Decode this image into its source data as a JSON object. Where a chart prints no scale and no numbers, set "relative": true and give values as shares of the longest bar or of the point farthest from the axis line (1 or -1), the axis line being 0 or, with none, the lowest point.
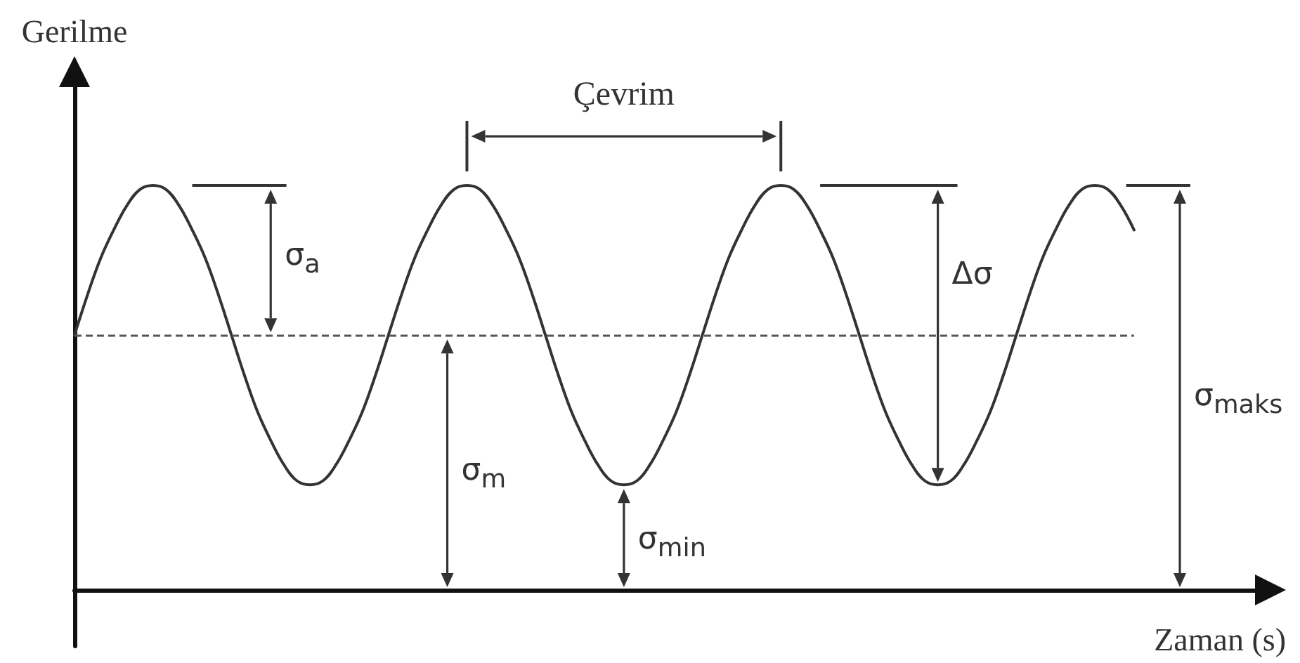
{
  "chart_data": {
    "type": "line",
    "xlabel": "Zaman (s)",
    "ylabel": "Gerilme",
    "relative": true,
    "grid": false,
    "line_style": "solid",
    "color": "#333333",
    "categories": [
      null,
      null,
      null,
      null,
      null,
      null,
      null,
      null,
      null,
      null,
      null,
      null,
      null,
      null,
      null,
      null,
      null,
      null,
      null,
      null,
      null,
      null,
      null,
      null,
      null,
      null,
      null,
      null,
      null,
      null,
      null,
      null,
      null,
      null,
      null,
      null,
      null,
      null,
      null,
      null,
      null,
      null,
      null,
      null,
      null,
      null,
      null,
      null,
      null,
      null,
      null,
      null,
      null,
      null,
      null,
      null,
      null,
      null,
      null,
      null,
      null,
      null,
      null,
      null,
      null,
      null,
      null,
      null,
      null,
      null,
      null,
      null,
      null,
      null,
      null,
      null,
      null,
      null,
      null,
      null,
      null,
      null,
      null,
      null,
      null,
      null,
      null,
      null,
      null,
      null,
      null,
      null
    ],
    "values": [
      0.63,
      0.73,
      0.82,
      0.89,
      0.95,
      0.99,
      1,
      0.99,
      0.95,
      0.89,
      0.82,
      0.73,
      0.63,
      0.53,
      0.44,
      0.37,
      0.31,
      0.27,
      0.26,
      0.27,
      0.31,
      0.37,
      0.44,
      0.53,
      0.63,
      0.73,
      0.82,
      0.89,
      0.95,
      0.99,
      1,
      0.99,
      0.95,
      0.89,
      0.82,
      0.73,
      0.63,
      0.53,
      0.44,
      0.37,
      0.31,
      0.27,
      0.26,
      0.27,
      0.31,
      0.37,
      0.44,
      0.53,
      0.63,
      0.73,
      0.82,
      0.89,
      0.95,
      0.99,
      1,
      0.99,
      0.95,
      0.89,
      0.82,
      0.73,
      0.63,
      0.53,
      0.44,
      0.37,
      0.31,
      0.27,
      0.26,
      0.27,
      0.31,
      0.37,
      0.44,
      0.53,
      0.63,
      0.73,
      0.82,
      0.89,
      0.95,
      0.99,
      1,
      0.99,
      0.95,
      0.89,
      null,
      null,
      null,
      null,
      null,
      null,
      null,
      null,
      null,
      null
    ],
    "ref_lines": [
      {
        "axis": "y",
        "value": 0.63,
        "color": "#555555",
        "line_style": "dashed"
      }
    ],
    "annotations": [
      "Çevrim",
      "σ$_{a}$",
      "Δσ",
      "σ$_{m}$",
      "σ$_{min}$",
      "σ$_{maks}$"
    ]
  }
}
